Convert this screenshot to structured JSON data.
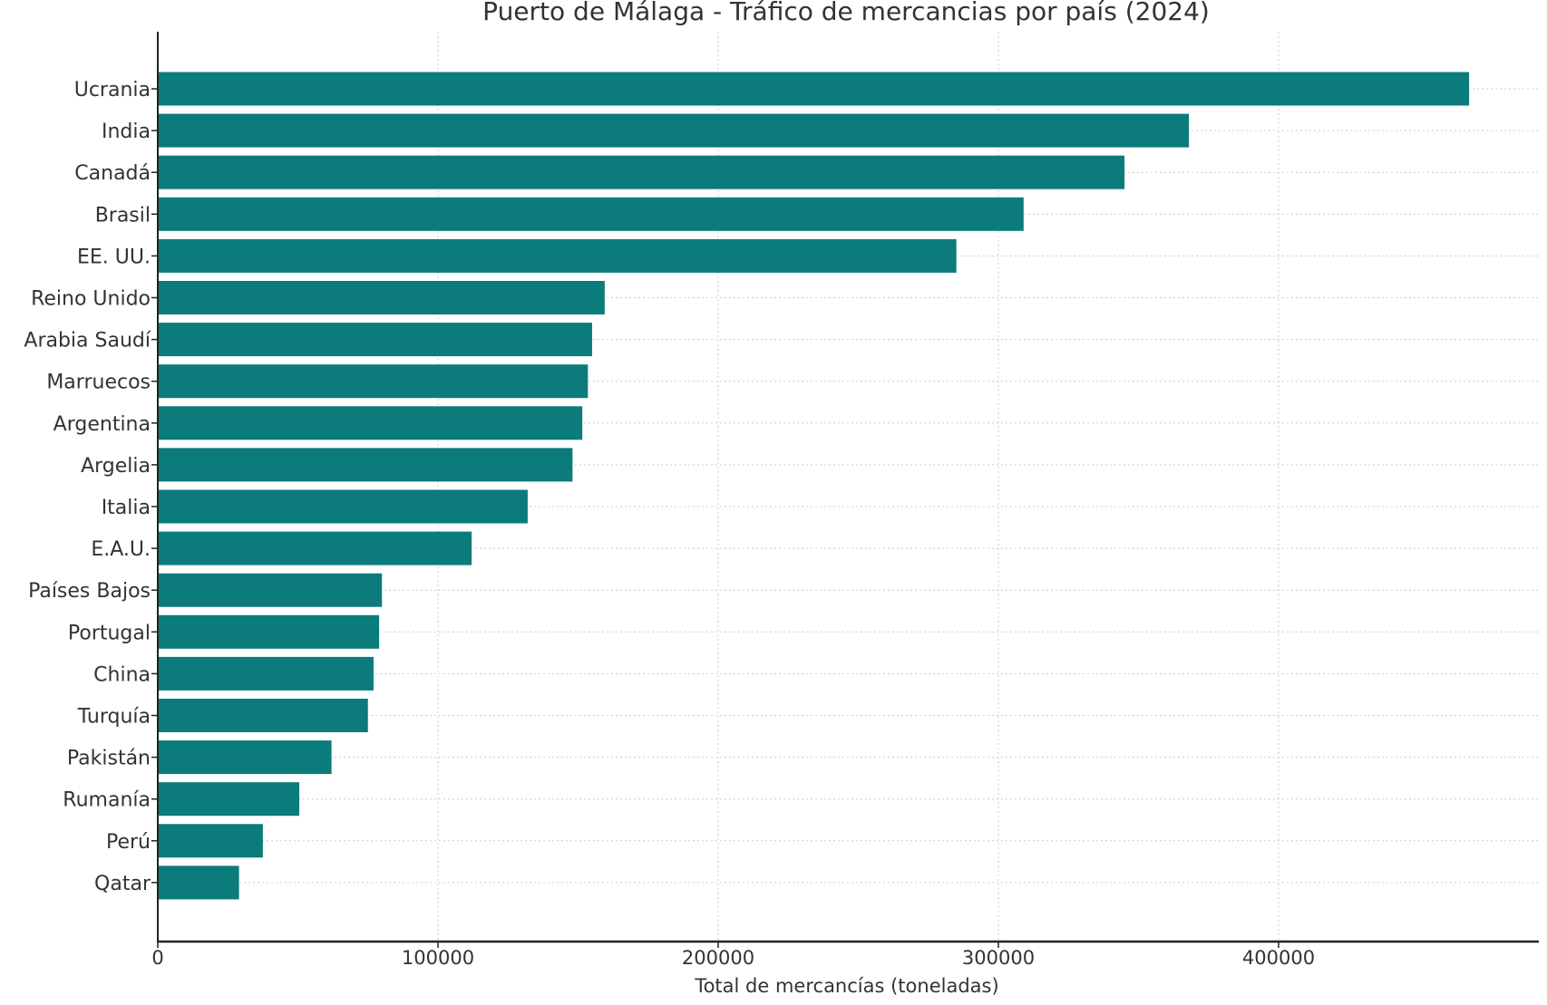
{
  "chart_data": {
    "type": "bar",
    "orientation": "horizontal",
    "title": "Puerto de Málaga - Tráfico de mercancias por país (2024)",
    "xlabel": "Total de mercancías (toneladas)",
    "ylabel": "",
    "xlim": [
      0,
      492000
    ],
    "xticks": [
      0,
      100000,
      200000,
      300000,
      400000
    ],
    "xtick_labels": [
      "0",
      "100000",
      "200000",
      "300000",
      "400000"
    ],
    "grid": true,
    "bar_color": "#0b7b7b",
    "categories": [
      "Ucrania",
      "India",
      "Canadá",
      "Brasil",
      "EE. UU.",
      "Reino Unido",
      "Arabia Saudí",
      "Marruecos",
      "Argentina",
      "Argelia",
      "Italia",
      "E.A.U.",
      "Países Bajos",
      "Portugal",
      "China",
      "Turquía",
      "Pakistán",
      "Rumanía",
      "Perú",
      "Qatar"
    ],
    "values": [
      468000,
      368000,
      345000,
      309000,
      285000,
      159500,
      155000,
      153500,
      151500,
      148000,
      132000,
      112000,
      80000,
      79000,
      77000,
      75000,
      62000,
      50500,
      37500,
      29000
    ]
  }
}
